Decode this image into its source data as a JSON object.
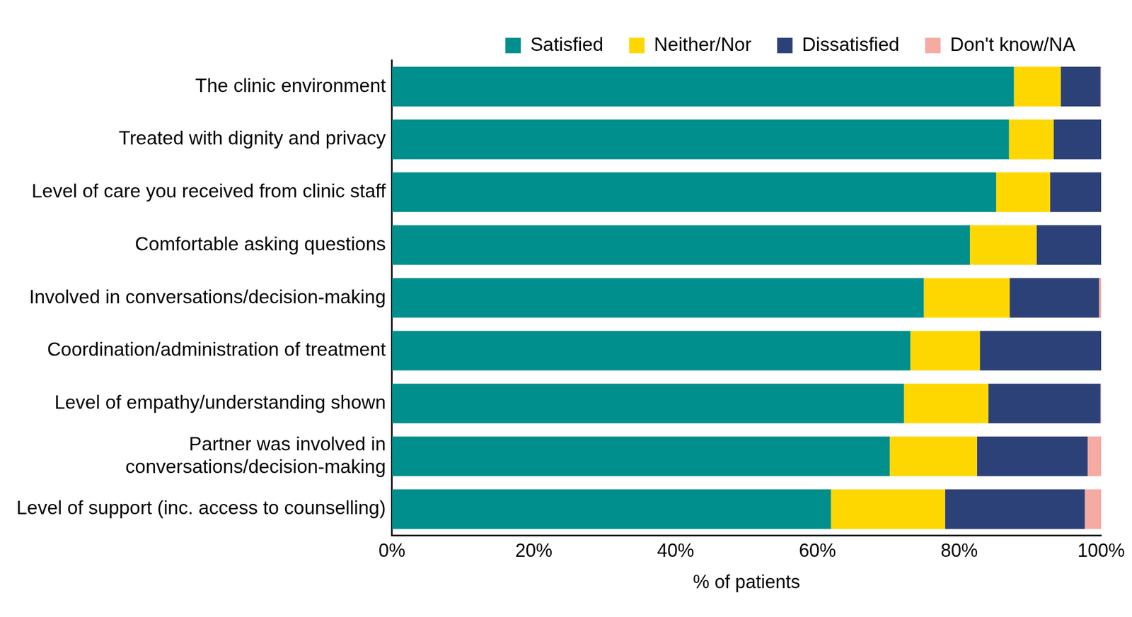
{
  "chart_data": {
    "type": "bar",
    "orientation": "horizontal",
    "stacked": true,
    "grid": false,
    "legend": "top",
    "x_label": "% of patients",
    "categories": [
      "The clinic environment",
      "Treated with dignity and privacy",
      "Level of care you received from clinic staff",
      "Comfortable asking questions",
      "Involved in conversations/decision-making",
      "Coordination/administration of treatment",
      "Level of empathy/understanding shown",
      [
        "Partner was involved in",
        "conversations/decision-making"
      ],
      "Level of support (inc. access to counselling)"
    ],
    "series": [
      {
        "name": "Satisfied",
        "color": "#008f8c",
        "values": [
          87.7,
          87.0,
          85.2,
          81.5,
          75.0,
          73.1,
          72.2,
          70.2,
          61.9
        ]
      },
      {
        "name": "Neither/Nor",
        "color": "#ffd700",
        "values": [
          6.6,
          6.3,
          7.6,
          9.4,
          12.1,
          9.8,
          11.9,
          12.3,
          16.1
        ]
      },
      {
        "name": "Dissatisfied",
        "color": "#2c4178",
        "values": [
          5.6,
          6.7,
          7.2,
          9.1,
          12.6,
          17.1,
          15.8,
          15.6,
          19.7
        ]
      },
      {
        "name": "Don't know/NA",
        "color": "#f5aaa2",
        "values": [
          0.1,
          0,
          0,
          0,
          0.3,
          0,
          0.1,
          1.9,
          2.3
        ]
      }
    ],
    "xlim": [
      0,
      100
    ],
    "xticks": [
      {
        "value": 0,
        "label": "0%"
      },
      {
        "value": 20,
        "label": "20%"
      },
      {
        "value": 40,
        "label": "40%"
      },
      {
        "value": 60,
        "label": "60%"
      },
      {
        "value": 80,
        "label": "80%"
      },
      {
        "value": 100,
        "label": "100%"
      }
    ]
  }
}
